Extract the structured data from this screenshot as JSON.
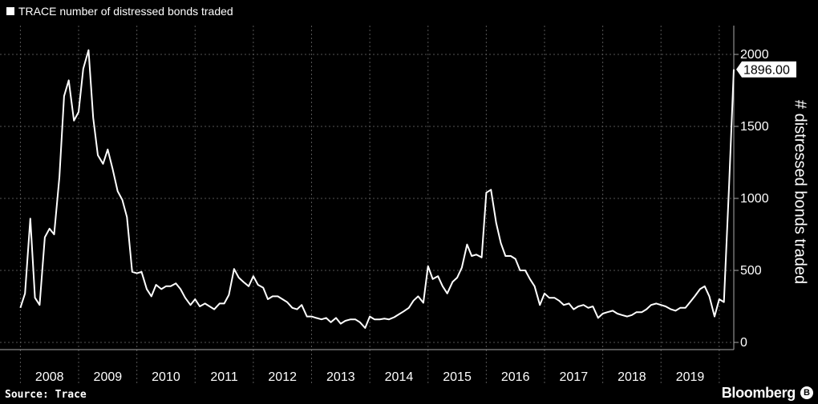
{
  "legend": {
    "label": "TRACE number of distressed bonds traded"
  },
  "source": "Source: Trace",
  "brand": "Bloomberg",
  "colors": {
    "background": "#000000",
    "line": "#ffffff",
    "grid": "#555555"
  },
  "chart_data": {
    "type": "line",
    "title": "",
    "xlabel": "",
    "ylabel": "# distressed bonds traded",
    "legend": [
      "TRACE number of distressed bonds traded"
    ],
    "ylim": [
      -50,
      2200
    ],
    "yticks": [
      0,
      500,
      1000,
      1500,
      2000
    ],
    "years": [
      "2008",
      "2009",
      "2010",
      "2011",
      "2012",
      "2013",
      "2014",
      "2015",
      "2016",
      "2017",
      "2018",
      "2019"
    ],
    "grid": true,
    "last_value_label": "1896.00",
    "series": [
      {
        "name": "TRACE number of distressed bonds traded",
        "x": [
          2008.0,
          2008.08,
          2008.17,
          2008.25,
          2008.33,
          2008.42,
          2008.5,
          2008.58,
          2008.67,
          2008.75,
          2008.83,
          2008.92,
          2009.0,
          2009.08,
          2009.17,
          2009.25,
          2009.33,
          2009.42,
          2009.5,
          2009.58,
          2009.67,
          2009.75,
          2009.83,
          2009.92,
          2010.0,
          2010.08,
          2010.17,
          2010.25,
          2010.33,
          2010.42,
          2010.5,
          2010.58,
          2010.67,
          2010.75,
          2010.83,
          2010.92,
          2011.0,
          2011.08,
          2011.17,
          2011.25,
          2011.33,
          2011.42,
          2011.5,
          2011.58,
          2011.67,
          2011.75,
          2011.83,
          2011.92,
          2012.0,
          2012.08,
          2012.17,
          2012.25,
          2012.33,
          2012.42,
          2012.5,
          2012.58,
          2012.67,
          2012.75,
          2012.83,
          2012.92,
          2013.0,
          2013.08,
          2013.17,
          2013.25,
          2013.33,
          2013.42,
          2013.5,
          2013.58,
          2013.67,
          2013.75,
          2013.83,
          2013.92,
          2014.0,
          2014.08,
          2014.17,
          2014.25,
          2014.33,
          2014.42,
          2014.5,
          2014.58,
          2014.67,
          2014.75,
          2014.83,
          2014.92,
          2015.0,
          2015.08,
          2015.17,
          2015.25,
          2015.33,
          2015.42,
          2015.5,
          2015.58,
          2015.67,
          2015.75,
          2015.83,
          2015.92,
          2016.0,
          2016.08,
          2016.17,
          2016.25,
          2016.33,
          2016.42,
          2016.5,
          2016.58,
          2016.67,
          2016.75,
          2016.83,
          2016.92,
          2017.0,
          2017.08,
          2017.17,
          2017.25,
          2017.33,
          2017.42,
          2017.5,
          2017.58,
          2017.67,
          2017.75,
          2017.83,
          2017.92,
          2018.0,
          2018.08,
          2018.17,
          2018.25,
          2018.33,
          2018.42,
          2018.5,
          2018.58,
          2018.67,
          2018.75,
          2018.83,
          2018.92,
          2019.0,
          2019.08,
          2019.17,
          2019.25,
          2019.33,
          2019.42,
          2019.5,
          2019.58,
          2019.67,
          2019.75,
          2019.83,
          2019.92,
          2020.0,
          2020.08,
          2020.17,
          2020.25
        ],
        "y": [
          240,
          340,
          860,
          310,
          260,
          730,
          790,
          750,
          1150,
          1710,
          1820,
          1540,
          1600,
          1900,
          2030,
          1560,
          1300,
          1240,
          1340,
          1210,
          1050,
          990,
          870,
          490,
          480,
          490,
          370,
          320,
          400,
          370,
          390,
          390,
          410,
          370,
          310,
          260,
          300,
          250,
          270,
          250,
          230,
          270,
          270,
          330,
          510,
          450,
          420,
          390,
          460,
          400,
          380,
          300,
          320,
          320,
          300,
          280,
          240,
          230,
          260,
          180,
          180,
          170,
          160,
          170,
          140,
          170,
          130,
          150,
          160,
          160,
          140,
          100,
          180,
          160,
          160,
          165,
          160,
          175,
          195,
          215,
          240,
          290,
          320,
          275,
          530,
          440,
          460,
          390,
          340,
          420,
          450,
          520,
          680,
          600,
          610,
          590,
          1040,
          1060,
          830,
          690,
          600,
          600,
          580,
          500,
          500,
          440,
          390,
          260,
          340,
          310,
          310,
          290,
          260,
          270,
          230,
          250,
          260,
          240,
          250,
          170,
          200,
          210,
          220,
          200,
          190,
          180,
          190,
          210,
          210,
          230,
          260,
          270,
          260,
          250,
          230,
          220,
          240,
          240,
          280,
          320,
          370,
          390,
          320,
          180,
          300,
          280,
          1100,
          1896
        ]
      }
    ]
  }
}
